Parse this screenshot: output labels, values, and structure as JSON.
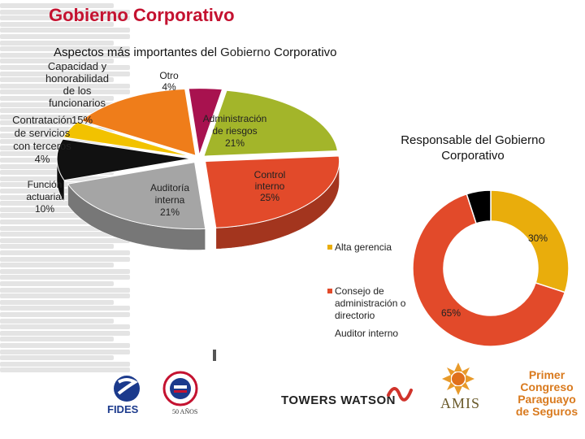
{
  "header": {
    "title": "Gobierno Corporativo",
    "subtitle_bold": "Aspectos más importantes del ",
    "subtitle_light": "Gobierno",
    "subtitle_end": " Corporativo"
  },
  "chart_data": [
    {
      "type": "pie",
      "style": "3d-exploded",
      "title": "",
      "slices": [
        {
          "label": "Otro",
          "value": 4,
          "display": "4%",
          "color": "#a8124f"
        },
        {
          "label": "Administración de riesgos",
          "value": 21,
          "display": "21%",
          "color": "#a3b52a"
        },
        {
          "label": "Control interno",
          "value": 25,
          "display": "25%",
          "color": "#e24a2a"
        },
        {
          "label": "Auditoría interna",
          "value": 21,
          "display": "21%",
          "color": "#a5a5a5"
        },
        {
          "label": "Función actuarial",
          "value": 10,
          "display": "10%",
          "color": "#111111"
        },
        {
          "label": "Contratación de servicios con terceros",
          "value": 4,
          "display": "4%",
          "color": "#f2c200"
        },
        {
          "label": "Capacidad y honorabilidad de los funcionarios",
          "value": 15,
          "display": "15%",
          "color": "#ef7d1a"
        }
      ]
    },
    {
      "type": "pie",
      "style": "donut",
      "title": "Responsable del Gobierno Corporativo",
      "legend_position": "left",
      "slices": [
        {
          "label": "Alta gerencia",
          "value": 30,
          "display": "30%",
          "color": "#e9ad0c"
        },
        {
          "label": "Consejo de administración o directorio",
          "value": 65,
          "display": "65%",
          "color": "#e24a2a"
        },
        {
          "label": "Auditor interno",
          "value": 5,
          "display": "",
          "color": "#000000"
        }
      ]
    }
  ],
  "pie_labels": {
    "capacidad": "Capacidad y\nhonorabilidad\nde los\nfuncionarios",
    "capacidad_pct": "15%",
    "contratacion": "Contratación\nde servicios\ncon terceros\n4%",
    "funcion": "Función\nactuarial\n10%",
    "otro": "Otro\n4%",
    "admin": "Administración\nde riesgos\n21%",
    "control": "Control\ninterno\n25%",
    "auditoria": "Auditoría\ninterna\n21%"
  },
  "donut_title": "Responsable del Gobierno\nCorporativo",
  "footer": {
    "fides": "FIDES",
    "fifty": "50 AÑOS",
    "towers_watson": "TOWERS WATSON",
    "amis": "AMIS",
    "primer": "Primer\nCongreso\nParaguayo\nde Seguros"
  },
  "colors": {
    "title": "#c41230"
  }
}
